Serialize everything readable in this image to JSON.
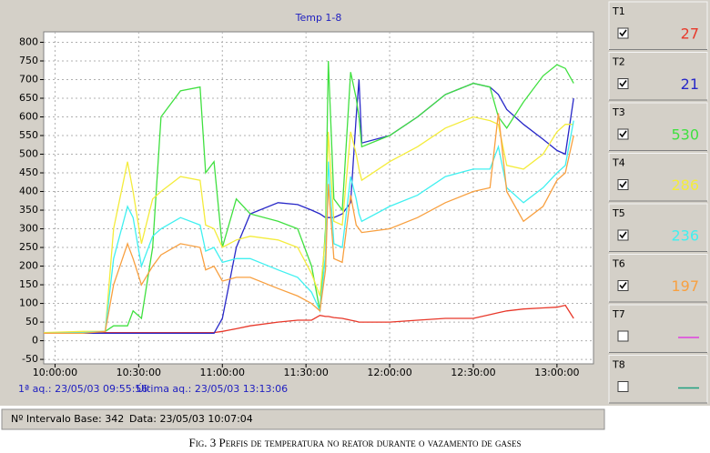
{
  "chart_data": {
    "type": "line",
    "title": "Temp 1-8",
    "x": [
      "09:55:56",
      "10:10:00",
      "10:18:00",
      "10:21:00",
      "10:26:00",
      "10:28:00",
      "10:31:00",
      "10:35:00",
      "10:38:00",
      "10:45:00",
      "10:52:00",
      "10:54:00",
      "10:57:00",
      "11:00:00",
      "11:05:00",
      "11:10:00",
      "11:20:00",
      "11:27:00",
      "11:32:00",
      "11:35:00",
      "11:37:00",
      "11:38:00",
      "11:40:00",
      "11:43:00",
      "11:46:00",
      "11:48:00",
      "11:49:00",
      "11:50:00",
      "12:00:00",
      "12:10:00",
      "12:20:00",
      "12:30:00",
      "12:36:00",
      "12:39:00",
      "12:42:00",
      "12:48:00",
      "12:55:00",
      "13:00:00",
      "13:03:00",
      "13:06:00"
    ],
    "xlim": [
      "09:55:56",
      "13:13:06"
    ],
    "xticks": [
      "10:00:00",
      "10:30:00",
      "11:00:00",
      "11:30:00",
      "12:00:00",
      "12:30:00",
      "13:00:00"
    ],
    "ylim": [
      -62,
      828
    ],
    "yticks": [
      -50,
      0,
      50,
      100,
      150,
      200,
      250,
      300,
      350,
      400,
      450,
      500,
      550,
      600,
      650,
      700,
      750,
      800
    ],
    "grid": true,
    "series": [
      {
        "name": "T1",
        "color": "#e8382a",
        "checked": true,
        "current": 27,
        "values": [
          20,
          20,
          22,
          22,
          22,
          22,
          22,
          22,
          22,
          22,
          22,
          22,
          22,
          25,
          32,
          40,
          50,
          55,
          55,
          68,
          65,
          65,
          62,
          60,
          55,
          52,
          50,
          50,
          50,
          55,
          60,
          60,
          70,
          75,
          80,
          85,
          88,
          90,
          95,
          60
        ]
      },
      {
        "name": "T2",
        "color": "#2828c8",
        "checked": true,
        "current": 21,
        "values": [
          20,
          20,
          20,
          20,
          20,
          20,
          20,
          20,
          20,
          20,
          20,
          20,
          20,
          60,
          250,
          340,
          370,
          365,
          350,
          340,
          330,
          330,
          330,
          340,
          370,
          600,
          700,
          530,
          550,
          600,
          660,
          690,
          680,
          660,
          620,
          580,
          540,
          510,
          500,
          650
        ]
      },
      {
        "name": "T3",
        "color": "#40e040",
        "checked": true,
        "current": 530,
        "values": [
          20,
          22,
          25,
          40,
          40,
          80,
          60,
          250,
          600,
          670,
          680,
          450,
          480,
          250,
          380,
          340,
          320,
          300,
          200,
          80,
          300,
          750,
          380,
          350,
          720,
          650,
          600,
          520,
          550,
          600,
          660,
          690,
          680,
          600,
          570,
          640,
          710,
          740,
          730,
          690
        ]
      },
      {
        "name": "T4",
        "color": "#f4ec3c",
        "checked": true,
        "current": 286,
        "values": [
          22,
          25,
          25,
          300,
          480,
          400,
          260,
          380,
          400,
          440,
          430,
          310,
          300,
          250,
          270,
          280,
          270,
          250,
          180,
          120,
          280,
          560,
          320,
          310,
          560,
          500,
          460,
          430,
          480,
          520,
          570,
          600,
          590,
          580,
          470,
          460,
          500,
          560,
          580,
          580
        ]
      },
      {
        "name": "T5",
        "color": "#40f0f0",
        "checked": true,
        "current": 236,
        "values": [
          20,
          22,
          25,
          220,
          360,
          330,
          200,
          280,
          300,
          330,
          310,
          240,
          250,
          210,
          220,
          220,
          190,
          170,
          130,
          80,
          230,
          480,
          260,
          250,
          440,
          380,
          340,
          320,
          360,
          390,
          440,
          460,
          460,
          520,
          410,
          370,
          410,
          450,
          470,
          590
        ]
      },
      {
        "name": "T6",
        "color": "#f8a040",
        "checked": true,
        "current": 197,
        "values": [
          20,
          20,
          25,
          150,
          260,
          220,
          150,
          200,
          230,
          260,
          250,
          190,
          200,
          160,
          170,
          170,
          140,
          120,
          100,
          80,
          190,
          420,
          220,
          210,
          390,
          310,
          300,
          290,
          300,
          330,
          370,
          400,
          410,
          610,
          400,
          320,
          360,
          430,
          450,
          550
        ]
      }
    ],
    "inactive_series": [
      {
        "name": "T7",
        "color": "#e040e0",
        "checked": false
      },
      {
        "name": "T8",
        "color": "#20a080",
        "checked": false
      }
    ],
    "first_acq": "1ª aq.: 23/05/03 09:55:56",
    "last_acq": "Última aq.: 23/05/03 13:13:06"
  },
  "status_bar": {
    "interval": "Nº Intervalo Base: 342",
    "date": "Data: 23/05/03 10:07:04"
  },
  "caption": "Fig. 3 Perfis de temperatura no reator durante o  vazamento de gases"
}
